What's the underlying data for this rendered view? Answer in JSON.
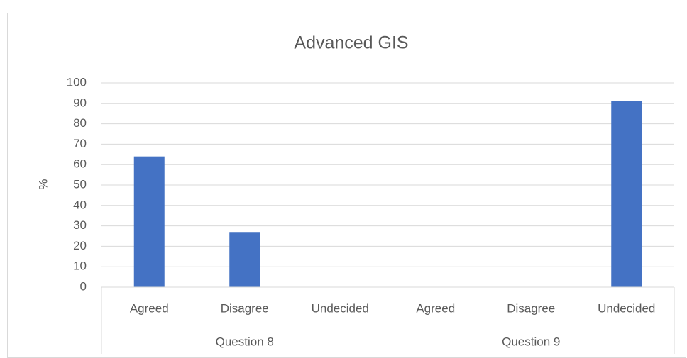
{
  "chart_data": {
    "type": "bar",
    "title": "Advanced GIS",
    "ylabel": "%",
    "groups": [
      {
        "name": "Question 8",
        "categories": [
          "Agreed",
          "Disagree",
          "Undecided"
        ],
        "values": [
          64,
          27,
          0
        ]
      },
      {
        "name": "Question 9",
        "categories": [
          "Agreed",
          "Disagree",
          "Undecided"
        ],
        "values": [
          0,
          0,
          91
        ]
      }
    ],
    "color": "#4472c4",
    "ylim": [
      0,
      100
    ],
    "yticks": [
      0,
      10,
      20,
      30,
      40,
      50,
      60,
      70,
      80,
      90,
      100
    ],
    "grid": true
  }
}
